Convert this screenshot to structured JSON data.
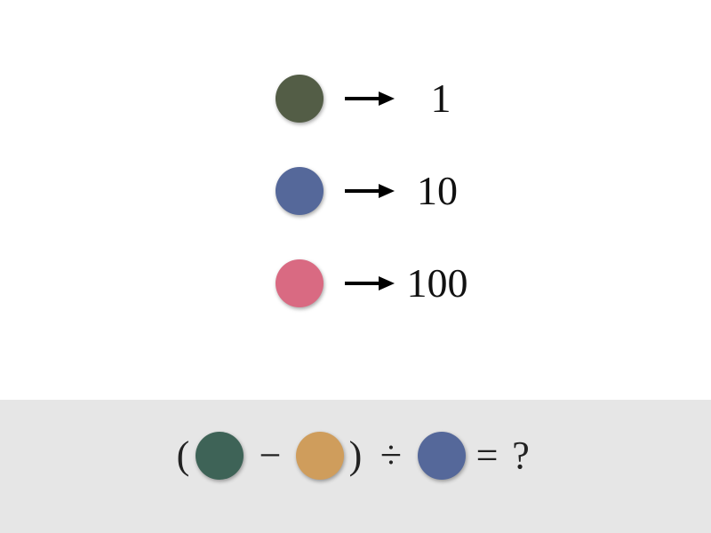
{
  "legend": {
    "rows": [
      {
        "color": "#535d46",
        "color_name": "olive-green",
        "value": "1"
      },
      {
        "color": "#55689a",
        "color_name": "blue",
        "value": "10"
      },
      {
        "color": "#d96a82",
        "color_name": "pink",
        "value": "100"
      }
    ]
  },
  "equation": {
    "open_paren": "(",
    "circle_1": {
      "color": "#3e6357",
      "color_name": "teal-green"
    },
    "minus": "−",
    "circle_2": {
      "color": "#cf9d5c",
      "color_name": "orange"
    },
    "close_paren": ")",
    "divide": "÷",
    "circle_3": {
      "color": "#55689a",
      "color_name": "blue"
    },
    "equals": "=",
    "question": "?"
  },
  "icons": {
    "legend_circle": "color-circle-icon",
    "arrow": "arrow-right-icon"
  },
  "colors": {
    "background": "#ffffff",
    "equation_band": "#e6e6e6",
    "arrow": "#000000"
  }
}
